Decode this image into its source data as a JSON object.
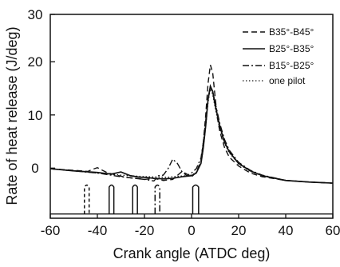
{
  "chart_data": {
    "type": "line",
    "title": "",
    "xlabel": "Crank angle (ATDC deg)",
    "ylabel": "Rate of heat release (J/deg)",
    "xlim": [
      -60,
      60
    ],
    "ylim": [
      -8.3,
      30
    ],
    "x_ticks": [
      -60,
      -40,
      -20,
      0,
      20,
      40,
      60
    ],
    "y_ticks": [
      0,
      10,
      20,
      30
    ],
    "grid": false,
    "legend_position": "top-right",
    "series": [
      {
        "name": "B35°-B45°",
        "style": "dashed",
        "x": [
          -60,
          -50,
          -44,
          -42,
          -40,
          -36,
          -32,
          -28,
          -24,
          -20,
          -16,
          -12,
          -8,
          -4,
          0,
          2,
          4,
          5,
          6,
          7,
          8,
          9,
          10,
          11,
          12,
          14,
          16,
          20,
          25,
          30,
          40,
          50,
          60
        ],
        "y": [
          1.0,
          0.7,
          0.5,
          0.9,
          1.2,
          0.3,
          -0.2,
          -0.6,
          -0.8,
          -1.0,
          -0.8,
          -1.2,
          -1.0,
          0.5,
          -0.5,
          0.3,
          2.5,
          6.0,
          11.0,
          17.0,
          20.5,
          19.0,
          14.5,
          10.5,
          8.0,
          5.0,
          3.2,
          1.5,
          0.2,
          -0.5,
          -1.2,
          -1.5,
          -1.7
        ]
      },
      {
        "name": "B25°-B35°",
        "style": "solid",
        "x": [
          -60,
          -50,
          -40,
          -34,
          -30,
          -26,
          -22,
          -20,
          -16,
          -12,
          -8,
          -4,
          0,
          2,
          4,
          5,
          6,
          7,
          8,
          9,
          10,
          12,
          14,
          16,
          20,
          25,
          30,
          40,
          50,
          60
        ],
        "y": [
          1.0,
          0.6,
          0.3,
          0.0,
          0.4,
          -0.3,
          -0.6,
          -0.6,
          -0.8,
          -0.9,
          -0.8,
          -0.5,
          -0.3,
          0.2,
          2.0,
          5.0,
          9.0,
          14.0,
          16.5,
          15.5,
          13.0,
          9.0,
          6.0,
          4.2,
          2.0,
          0.6,
          -0.3,
          -1.2,
          -1.5,
          -1.7
        ]
      },
      {
        "name": "B15°-B25°",
        "style": "dashdot",
        "x": [
          -60,
          -50,
          -40,
          -30,
          -24,
          -20,
          -16,
          -14,
          -12,
          -10,
          -8,
          -6,
          -4,
          -2,
          0,
          2,
          4,
          5,
          6,
          7,
          8,
          9,
          10,
          12,
          14,
          16,
          20,
          25,
          30,
          40,
          50,
          60
        ],
        "y": [
          1.0,
          0.6,
          0.2,
          -0.5,
          -0.8,
          -1.0,
          -1.3,
          -0.3,
          -0.2,
          1.0,
          2.8,
          2.0,
          0.4,
          -0.3,
          0.2,
          1.0,
          3.0,
          6.0,
          10.0,
          14.0,
          16.5,
          15.5,
          13.5,
          9.5,
          6.5,
          4.5,
          2.2,
          0.7,
          -0.2,
          -1.2,
          -1.5,
          -1.7
        ]
      },
      {
        "name": "one pilot",
        "style": "dotted",
        "x": [
          -60,
          -50,
          -40,
          -30,
          -20,
          -10,
          -5,
          0,
          2,
          4,
          5,
          6,
          7,
          8,
          9,
          10,
          12,
          14,
          16,
          20,
          25,
          30,
          40,
          50,
          60
        ],
        "y": [
          1.0,
          0.6,
          0.2,
          -0.2,
          -0.5,
          -0.6,
          -0.4,
          -0.2,
          0.3,
          2.0,
          5.0,
          9.0,
          13.5,
          16.0,
          15.0,
          12.5,
          8.5,
          5.8,
          4.0,
          1.9,
          0.5,
          -0.3,
          -1.2,
          -1.5,
          -1.7
        ]
      }
    ],
    "injection_pulses": {
      "baseline_y": -7.5,
      "peak_y": -2.0,
      "pulses": [
        {
          "start": -45.5,
          "end": -43.5,
          "style": "dashed"
        },
        {
          "start": -35.0,
          "end": -33.0,
          "style": "solid"
        },
        {
          "start": -25.0,
          "end": -23.0,
          "style": "solid"
        },
        {
          "start": -15.5,
          "end": -13.5,
          "style": "dashdot"
        },
        {
          "start": 0.5,
          "end": 3.0,
          "style": "solid"
        }
      ]
    }
  }
}
